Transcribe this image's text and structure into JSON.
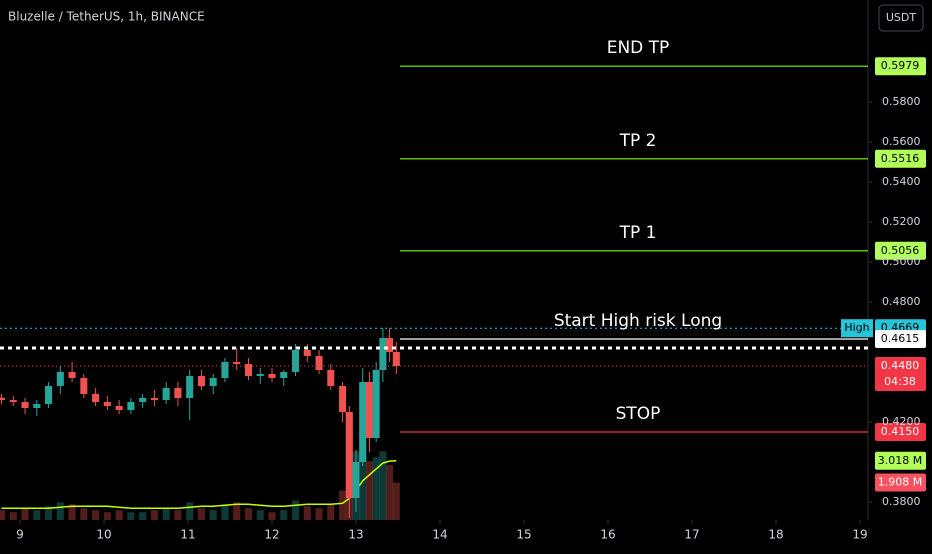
{
  "header": {
    "symbol": "Bluzelle / TetherUS, 1h, BINANCE",
    "currency": "USDT"
  },
  "chart_data": {
    "type": "candlestick",
    "xlim": [
      8.762,
      19.095
    ],
    "ylim": [
      0.371,
      0.631
    ],
    "xticks": [
      9,
      10,
      11,
      12,
      13,
      14,
      15,
      16,
      17,
      18,
      19
    ],
    "yticks": [
      {
        "value": 0.58,
        "label": "0.5800"
      },
      {
        "value": 0.56,
        "label": "0.5600"
      },
      {
        "value": 0.54,
        "label": "0.5400"
      },
      {
        "value": 0.52,
        "label": "0.5200"
      },
      {
        "value": 0.5,
        "label": "0.5000"
      },
      {
        "value": 0.48,
        "label": "0.4800"
      },
      {
        "value": 0.42,
        "label": "0.4200"
      },
      {
        "value": 0.38,
        "label": "0.3800"
      }
    ],
    "up_color": "#26a69a",
    "down_color": "#ef5350",
    "x": [
      8.78,
      8.92,
      9.06,
      9.2,
      9.34,
      9.48,
      9.62,
      9.76,
      9.9,
      10.04,
      10.18,
      10.32,
      10.46,
      10.6,
      10.74,
      10.88,
      11.02,
      11.16,
      11.3,
      11.44,
      11.58,
      11.72,
      11.86,
      12.0,
      12.14,
      12.28,
      12.42,
      12.56,
      12.7,
      12.84,
      12.92,
      13.0,
      13.08,
      13.16,
      13.24,
      13.32,
      13.4,
      13.48
    ],
    "open": [
      0.432,
      0.431,
      0.43,
      0.427,
      0.429,
      0.438,
      0.445,
      0.442,
      0.434,
      0.43,
      0.428,
      0.426,
      0.43,
      0.432,
      0.431,
      0.437,
      0.432,
      0.443,
      0.438,
      0.442,
      0.45,
      0.449,
      0.443,
      0.444,
      0.442,
      0.445,
      0.456,
      0.453,
      0.446,
      0.438,
      0.425,
      0.382,
      0.4,
      0.44,
      0.412,
      0.446,
      0.462,
      0.455
    ],
    "high": [
      0.434,
      0.433,
      0.432,
      0.431,
      0.44,
      0.448,
      0.45,
      0.444,
      0.437,
      0.433,
      0.431,
      0.432,
      0.434,
      0.436,
      0.44,
      0.44,
      0.446,
      0.446,
      0.444,
      0.452,
      0.457,
      0.452,
      0.447,
      0.447,
      0.446,
      0.459,
      0.459,
      0.456,
      0.449,
      0.44,
      0.428,
      0.406,
      0.447,
      0.445,
      0.45,
      0.467,
      0.4669,
      0.46
    ],
    "low": [
      0.429,
      0.428,
      0.424,
      0.423,
      0.427,
      0.434,
      0.44,
      0.432,
      0.428,
      0.426,
      0.424,
      0.424,
      0.427,
      0.428,
      0.429,
      0.428,
      0.421,
      0.436,
      0.434,
      0.44,
      0.446,
      0.441,
      0.439,
      0.44,
      0.438,
      0.443,
      0.45,
      0.444,
      0.436,
      0.42,
      0.372,
      0.375,
      0.398,
      0.405,
      0.41,
      0.44,
      0.45,
      0.444
    ],
    "close": [
      0.431,
      0.43,
      0.427,
      0.429,
      0.438,
      0.445,
      0.442,
      0.434,
      0.43,
      0.428,
      0.426,
      0.43,
      0.432,
      0.431,
      0.437,
      0.432,
      0.443,
      0.438,
      0.442,
      0.45,
      0.449,
      0.443,
      0.444,
      0.442,
      0.445,
      0.456,
      0.453,
      0.446,
      0.438,
      0.425,
      0.382,
      0.4,
      0.44,
      0.412,
      0.446,
      0.462,
      0.455,
      0.448
    ],
    "volume_ylim": [
      0,
      26.5
    ],
    "volume": [
      0.5,
      0.4,
      0.6,
      0.5,
      0.7,
      0.9,
      0.8,
      0.6,
      0.5,
      0.4,
      0.5,
      0.4,
      0.4,
      0.5,
      0.6,
      0.5,
      0.9,
      0.6,
      0.5,
      0.8,
      0.9,
      0.6,
      0.5,
      0.4,
      0.5,
      1.0,
      0.7,
      0.6,
      0.8,
      1.5,
      5.5,
      3.5,
      4.5,
      3.0,
      3.2,
      3.5,
      2.8,
      1.908
    ],
    "volume_ma": [
      0.6,
      0.6,
      0.6,
      0.6,
      0.6,
      0.65,
      0.7,
      0.7,
      0.7,
      0.7,
      0.65,
      0.6,
      0.6,
      0.6,
      0.6,
      0.6,
      0.65,
      0.7,
      0.7,
      0.75,
      0.8,
      0.8,
      0.75,
      0.7,
      0.7,
      0.75,
      0.8,
      0.8,
      0.8,
      0.85,
      1.1,
      1.5,
      2.0,
      2.3,
      2.6,
      2.9,
      3.0,
      3.018
    ],
    "volume_ma_color": "#c6ff00",
    "volume_ma_label": {
      "value": 3.018,
      "label": "3.018 M"
    },
    "volume_label": {
      "value": 1.908,
      "label": "1.908 M"
    },
    "levels": [
      {
        "name": "END TP",
        "value": 0.5979,
        "label": "0.5979",
        "color": "#76ff03"
      },
      {
        "name": "TP 2",
        "value": 0.5516,
        "label": "0.5516",
        "color": "#76ff03"
      },
      {
        "name": "TP 1",
        "value": 0.5056,
        "label": "0.5056",
        "color": "#76ff03"
      },
      {
        "name": "Start High risk Long",
        "value": 0.4615,
        "label": "0.4615",
        "color": "#ffffff"
      },
      {
        "name": "STOP",
        "value": 0.415,
        "label": "0.4150",
        "color": "#f23645"
      }
    ],
    "high_line": {
      "name": "High",
      "value": 0.4669,
      "label": "0.4669",
      "color": "#26c6da"
    },
    "last_price": {
      "value": 0.448,
      "label": "0.4480",
      "countdown": "04:38",
      "color": "#f23645"
    }
  }
}
